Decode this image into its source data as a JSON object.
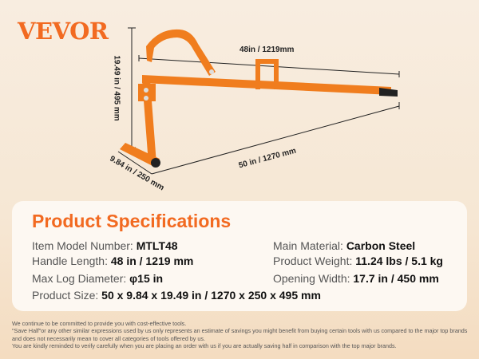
{
  "brand": {
    "logo": "VEVOR",
    "color": "#f26a21"
  },
  "dimensions": {
    "height": "19.49 in / 495 mm",
    "handle": "48in / 1219mm",
    "length": "50 in / 1270 mm",
    "width": "9.84 in / 250 mm"
  },
  "specs": {
    "title": "Product Specifications",
    "items": [
      {
        "label": "Item Model Number: ",
        "value": "MTLT48"
      },
      {
        "label": "Main Material: ",
        "value": "Carbon Steel"
      },
      {
        "label": "Handle Length: ",
        "value": "48 in / 1219 mm"
      },
      {
        "label": "Product Weight: ",
        "value": "11.24 lbs / 5.1 kg"
      },
      {
        "label": "Max Log Diameter: ",
        "value": "φ15 in"
      },
      {
        "label": "Opening Width: ",
        "value": "17.7 in / 450 mm"
      },
      {
        "label": "Product Size: ",
        "value": "50 x 9.84 x 19.49 in / 1270 x 250 x 495 mm"
      }
    ]
  },
  "footer": [
    "We continue to be committed to provide you with cost-effective tools.",
    "\"Save Half\"or any other similar expressions used by us only represents an estimate of savings you might benefit from buying certain tools with us compared to the major top brands and does not necessarily mean to cover all categories of tools offered by us.",
    "You are kindly reminded to verify carefully when you are placing an order with us if you are actually saving half in comparison with the top major brands."
  ]
}
